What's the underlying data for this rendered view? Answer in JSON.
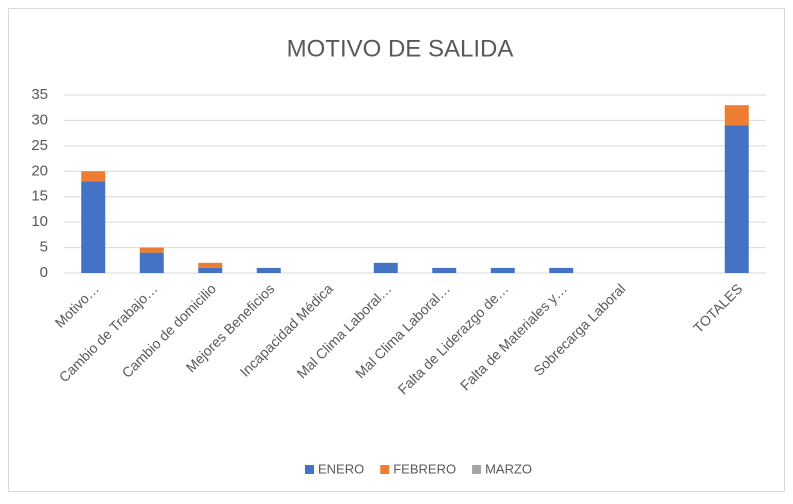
{
  "chart_data": {
    "type": "bar",
    "stacked": true,
    "title": "MOTIVO DE SALIDA",
    "categories": [
      "Motivo…",
      "Cambio de Trabajo…",
      "Cambio de domicilio",
      "Mejores Beneficios",
      "Incapacidad Médica",
      "Mal Clima Laboral…",
      "Mal Clima Laboral…",
      "Falta de Liderazgo de…",
      "Falta de Materiales y…",
      "Sobrecarga Laboral",
      null,
      "TOTALES"
    ],
    "series": [
      {
        "name": "ENERO",
        "color": "#4472c4",
        "values": [
          18,
          4,
          1,
          1,
          0,
          2,
          1,
          1,
          1,
          0,
          null,
          29
        ]
      },
      {
        "name": "FEBRERO",
        "color": "#ed7d31",
        "values": [
          2,
          1,
          1,
          0,
          0,
          0,
          0,
          0,
          0,
          0,
          null,
          4
        ]
      },
      {
        "name": "MARZO",
        "color": "#a5a5a5",
        "values": [
          0,
          0,
          0,
          0,
          0,
          0,
          0,
          0,
          0,
          0,
          null,
          0
        ]
      }
    ],
    "ylim": [
      0,
      35
    ],
    "yticks": [
      0,
      5,
      10,
      15,
      20,
      25,
      30,
      35
    ],
    "grid": true,
    "legend": "bottom"
  }
}
